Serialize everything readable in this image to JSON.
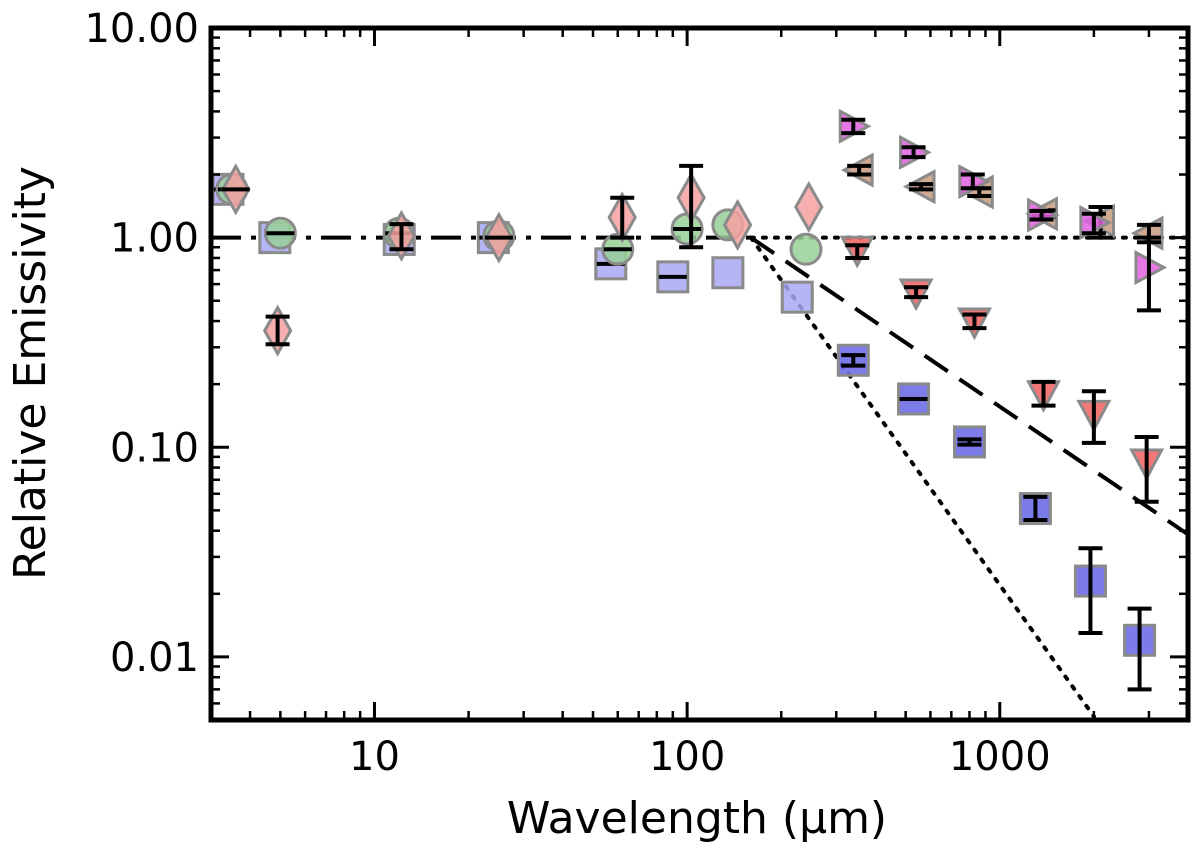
{
  "chart_data": {
    "type": "scatter",
    "title": "",
    "xlabel": "Wavelength (μm)",
    "ylabel": "Relative Emissivity",
    "xscale": "log",
    "yscale": "log",
    "xlim": [
      3,
      4000
    ],
    "ylim": [
      0.005,
      10
    ],
    "x_ticks": [
      10,
      100,
      1000
    ],
    "x_tick_labels": [
      "10",
      "100",
      "1000"
    ],
    "y_ticks": [
      0.01,
      0.1,
      1,
      10
    ],
    "y_tick_labels": [
      "0.01",
      "0.10",
      "1.00",
      "10.00"
    ],
    "grid": false,
    "legend": "none",
    "series": [
      {
        "name": "light-blue-squares",
        "marker": "square",
        "fill": "#a8a8f5",
        "stroke": "#8a8a8a",
        "points": [
          {
            "x": 3.4,
            "y": 1.7,
            "xbar": true
          },
          {
            "x": 4.8,
            "y": 1.0
          },
          {
            "x": 12,
            "y": 0.98,
            "xbar": true
          },
          {
            "x": 24,
            "y": 1.0,
            "xbar": true
          },
          {
            "x": 57,
            "y": 0.75,
            "xbar": true
          },
          {
            "x": 90,
            "y": 0.65,
            "xbar": true
          },
          {
            "x": 135,
            "y": 0.68
          },
          {
            "x": 225,
            "y": 0.52
          }
        ]
      },
      {
        "name": "blue-squares",
        "marker": "square",
        "fill": "#6464e6",
        "stroke": "#8a8a8a",
        "points": [
          {
            "x": 340,
            "y": 0.26,
            "yerr": [
              0.245,
              0.275
            ]
          },
          {
            "x": 530,
            "y": 0.17,
            "xbar": true
          },
          {
            "x": 800,
            "y": 0.106,
            "yerr": [
              0.103,
              0.109
            ]
          },
          {
            "x": 1300,
            "y": 0.051,
            "yerr": [
              0.045,
              0.058
            ]
          },
          {
            "x": 1950,
            "y": 0.023,
            "yerr": [
              0.013,
              0.033
            ]
          },
          {
            "x": 2800,
            "y": 0.012,
            "yerr": [
              0.007,
              0.017
            ]
          }
        ]
      },
      {
        "name": "green-circles",
        "marker": "circle",
        "fill": "#98d098",
        "stroke": "#8a8a8a",
        "points": [
          {
            "x": 3.5,
            "y": 1.7,
            "xbar": true
          },
          {
            "x": 5.0,
            "y": 1.05,
            "xbar": true
          },
          {
            "x": 12,
            "y": 1.05,
            "xbar": true
          },
          {
            "x": 25,
            "y": 1.02
          },
          {
            "x": 60,
            "y": 0.88,
            "xbar": true
          },
          {
            "x": 100,
            "y": 1.1,
            "xbar": true
          },
          {
            "x": 135,
            "y": 1.15
          },
          {
            "x": 240,
            "y": 0.88
          }
        ]
      },
      {
        "name": "light-red-diamonds",
        "marker": "diamond",
        "fill": "#f5a0a0",
        "stroke": "#8a8a8a",
        "points": [
          {
            "x": 3.6,
            "y": 1.7,
            "xbar": true
          },
          {
            "x": 4.9,
            "y": 0.36,
            "yerr": [
              0.31,
              0.42
            ]
          },
          {
            "x": 12.2,
            "y": 1.02,
            "yerr": [
              0.88,
              1.16
            ]
          },
          {
            "x": 25,
            "y": 1.0,
            "xbar": true
          },
          {
            "x": 62,
            "y": 1.25,
            "yerr": [
              1.0,
              1.55
            ]
          },
          {
            "x": 103,
            "y": 1.55,
            "yerr": [
              0.9,
              2.2
            ]
          },
          {
            "x": 145,
            "y": 1.15
          },
          {
            "x": 245,
            "y": 1.4
          }
        ]
      },
      {
        "name": "red-down-triangles",
        "marker": "triangle-down",
        "fill": "#f06060",
        "stroke": "#8a8a8a",
        "points": [
          {
            "x": 350,
            "y": 0.88,
            "yerr": [
              0.8,
              0.92
            ]
          },
          {
            "x": 540,
            "y": 0.55,
            "yerr": [
              0.52,
              0.58
            ]
          },
          {
            "x": 830,
            "y": 0.4,
            "yerr": [
              0.37,
              0.43
            ]
          },
          {
            "x": 1380,
            "y": 0.18,
            "yerr": [
              0.158,
              0.205
            ]
          },
          {
            "x": 2000,
            "y": 0.145,
            "yerr": [
              0.105,
              0.185
            ]
          },
          {
            "x": 2950,
            "y": 0.085,
            "yerr": [
              0.055,
              0.112
            ]
          }
        ]
      },
      {
        "name": "brown-left-triangles",
        "marker": "triangle-left",
        "fill": "#c89a80",
        "stroke": "#8a8a8a",
        "points": [
          {
            "x": 355,
            "y": 2.1,
            "yerr": [
              2.0,
              2.2
            ]
          },
          {
            "x": 560,
            "y": 1.75,
            "yerr": [
              1.7,
              1.8
            ]
          },
          {
            "x": 860,
            "y": 1.65,
            "yerr": [
              1.58,
              1.72
            ]
          },
          {
            "x": 1380,
            "y": 1.3,
            "yerr": [
              1.26,
              1.35
            ]
          },
          {
            "x": 2100,
            "y": 1.2,
            "yerr": [
              1.0,
              1.4
            ]
          },
          {
            "x": 3000,
            "y": 1.05,
            "yerr": [
              0.95,
              1.15
            ]
          }
        ]
      },
      {
        "name": "magenta-right-triangles",
        "marker": "triangle-right",
        "fill": "#e060e0",
        "stroke": "#8a8a8a",
        "points": [
          {
            "x": 340,
            "y": 3.4,
            "yerr": [
              3.15,
              3.65
            ]
          },
          {
            "x": 530,
            "y": 2.55,
            "yerr": [
              2.42,
              2.7
            ]
          },
          {
            "x": 820,
            "y": 1.85,
            "yerr": [
              1.72,
              2.0
            ]
          },
          {
            "x": 1360,
            "y": 1.28,
            "yerr": [
              1.22,
              1.34
            ]
          },
          {
            "x": 2000,
            "y": 1.18,
            "yerr": [
              1.05,
              1.3
            ]
          },
          {
            "x": 3000,
            "y": 0.72,
            "yerr": [
              0.45,
              1.0
            ]
          }
        ]
      }
    ],
    "reference_lines": [
      {
        "name": "dash-dot-line",
        "style": "dashdot",
        "points": [
          [
            3,
            1
          ],
          [
            160,
            1
          ]
        ]
      },
      {
        "name": "dotted-flat-line",
        "style": "dotted",
        "points": [
          [
            160,
            1
          ],
          [
            4000,
            1
          ]
        ]
      },
      {
        "name": "dashed-line",
        "style": "dashed",
        "points": [
          [
            160,
            1
          ],
          [
            4000,
            0.0384
          ]
        ]
      },
      {
        "name": "dotted-steep-line",
        "style": "dotted",
        "points": [
          [
            160,
            1
          ],
          [
            2000,
            0.0052
          ]
        ]
      }
    ]
  }
}
